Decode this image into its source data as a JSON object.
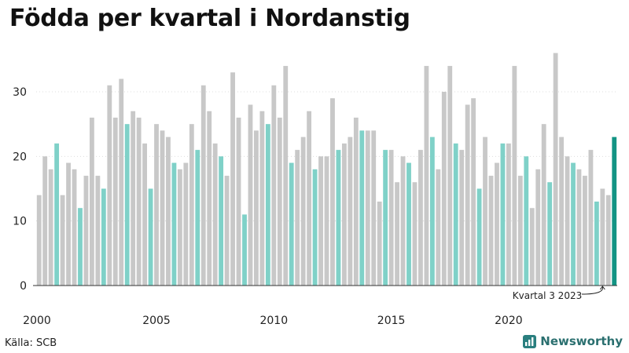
{
  "title": "Födda per kvartal i Nordanstig",
  "source": "Källa: SCB",
  "brand": "Newsworthy",
  "colors": {
    "bar": "#c8c8c8",
    "q4": "#7fd1c8",
    "latest": "#139484",
    "gridline": "#dddddd",
    "baseline": "#333333"
  },
  "chart_data": {
    "type": "bar",
    "title": "Födda per kvartal i Nordanstig",
    "xlabel": "",
    "ylabel": "",
    "ylim": [
      0,
      37
    ],
    "yticks": [
      0,
      10,
      20,
      30
    ],
    "xtick_labels": [
      "2000",
      "2005",
      "2010",
      "2015",
      "2020"
    ],
    "grid": true,
    "annotation": "Kvartal 3 2023",
    "start": "2000 Q1",
    "values": [
      14,
      20,
      18,
      22,
      14,
      19,
      18,
      12,
      17,
      26,
      17,
      15,
      31,
      26,
      32,
      25,
      27,
      26,
      22,
      15,
      25,
      24,
      23,
      19,
      18,
      19,
      25,
      21,
      31,
      27,
      22,
      20,
      17,
      33,
      26,
      11,
      28,
      24,
      27,
      25,
      31,
      26,
      34,
      19,
      21,
      23,
      27,
      18,
      20,
      20,
      29,
      21,
      22,
      23,
      26,
      24,
      24,
      24,
      13,
      21,
      21,
      16,
      20,
      19,
      16,
      21,
      34,
      23,
      18,
      30,
      34,
      22,
      21,
      28,
      29,
      15,
      23,
      17,
      19,
      22,
      22,
      34,
      17,
      20,
      12,
      18,
      25,
      16,
      36,
      23,
      20,
      19,
      18,
      17,
      21,
      13,
      15,
      14,
      23
    ]
  }
}
